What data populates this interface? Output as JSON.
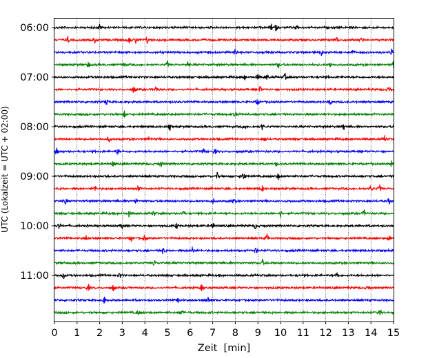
{
  "chart_data": {
    "type": "line",
    "title": "",
    "xlabel": "Zeit  [min]",
    "ylabel": "UTC (Lokalzeit = UTC + 02:00)",
    "xlim": [
      0,
      15
    ],
    "x_ticks": [
      "0",
      "1",
      "2",
      "3",
      "4",
      "5",
      "6",
      "7",
      "8",
      "9",
      "10",
      "11",
      "12",
      "13",
      "14",
      "15"
    ],
    "y_tick_labels": [
      "06:00",
      "07:00",
      "08:00",
      "09:00",
      "10:00",
      "11:00"
    ],
    "grid": "vertical dotted at each minute",
    "trace_interval_minutes": 15,
    "first_trace": "06:00",
    "trace_count": 24,
    "trace_colors": [
      "#000000",
      "#ff0000",
      "#0000ff",
      "#008000"
    ],
    "series": [
      {
        "start": "06:00",
        "color": "#000000",
        "events_min": [
          2.0,
          9.6,
          9.8,
          10.7
        ]
      },
      {
        "start": "06:15",
        "color": "#ff0000",
        "events_min": [
          0.6,
          1.8,
          3.3,
          3.6,
          4.1,
          12.5,
          13.6
        ]
      },
      {
        "start": "06:30",
        "color": "#0000ff",
        "events_min": [
          8.0,
          11.8,
          13.2,
          14.9
        ]
      },
      {
        "start": "06:45",
        "color": "#008000",
        "events_min": [
          1.5,
          3.1,
          5.0,
          5.9,
          9.9,
          12.2,
          15.0
        ]
      },
      {
        "start": "07:00",
        "color": "#000000",
        "events_min": [
          8.4,
          9.0,
          9.4,
          10.2
        ]
      },
      {
        "start": "07:15",
        "color": "#ff0000",
        "events_min": [
          3.5,
          4.5,
          9.1,
          14.8
        ]
      },
      {
        "start": "07:30",
        "color": "#0000ff",
        "events_min": [
          2.3,
          9.0,
          12.2
        ]
      },
      {
        "start": "07:45",
        "color": "#008000",
        "events_min": [
          3.1,
          8.0
        ]
      },
      {
        "start": "08:00",
        "color": "#000000",
        "events_min": [
          5.1,
          8.4,
          9.2,
          12.8
        ]
      },
      {
        "start": "08:15",
        "color": "#ff0000",
        "events_min": [
          2.4,
          4.2,
          9.3,
          14.6
        ]
      },
      {
        "start": "08:30",
        "color": "#0000ff",
        "events_min": [
          0.1,
          2.8,
          6.6,
          7.1
        ]
      },
      {
        "start": "08:45",
        "color": "#008000",
        "events_min": [
          2.6,
          4.7,
          9.8,
          14.9
        ]
      },
      {
        "start": "09:00",
        "color": "#000000",
        "events_min": [
          7.2,
          8.3,
          8.4,
          9.9
        ]
      },
      {
        "start": "09:15",
        "color": "#ff0000",
        "events_min": [
          1.8,
          3.7,
          9.2,
          14.0,
          14.4
        ]
      },
      {
        "start": "09:30",
        "color": "#0000ff",
        "events_min": [
          0.5,
          3.6,
          7.0,
          7.9,
          14.8
        ]
      },
      {
        "start": "09:45",
        "color": "#008000",
        "events_min": [
          3.3,
          4.4,
          5.7,
          10.0,
          13.7
        ]
      },
      {
        "start": "10:00",
        "color": "#000000",
        "events_min": [
          0.2,
          3.0,
          5.4,
          7.0,
          8.9
        ]
      },
      {
        "start": "10:15",
        "color": "#ff0000",
        "events_min": [
          1.4,
          3.4,
          4.0,
          9.4,
          14.8
        ]
      },
      {
        "start": "10:30",
        "color": "#0000ff",
        "events_min": [
          4.8,
          6.1,
          8.9
        ]
      },
      {
        "start": "10:45",
        "color": "#008000",
        "events_min": [
          4.4,
          9.2
        ]
      },
      {
        "start": "11:00",
        "color": "#000000",
        "events_min": [
          0.4,
          2.9,
          12.5
        ]
      },
      {
        "start": "11:15",
        "color": "#ff0000",
        "events_min": [
          1.5,
          2.6,
          6.5,
          13.9
        ]
      },
      {
        "start": "11:30",
        "color": "#0000ff",
        "events_min": [
          2.2,
          5.5,
          6.8
        ]
      },
      {
        "start": "11:45",
        "color": "#008000",
        "events_min": [
          3.7,
          5.6,
          14.4
        ]
      }
    ]
  }
}
